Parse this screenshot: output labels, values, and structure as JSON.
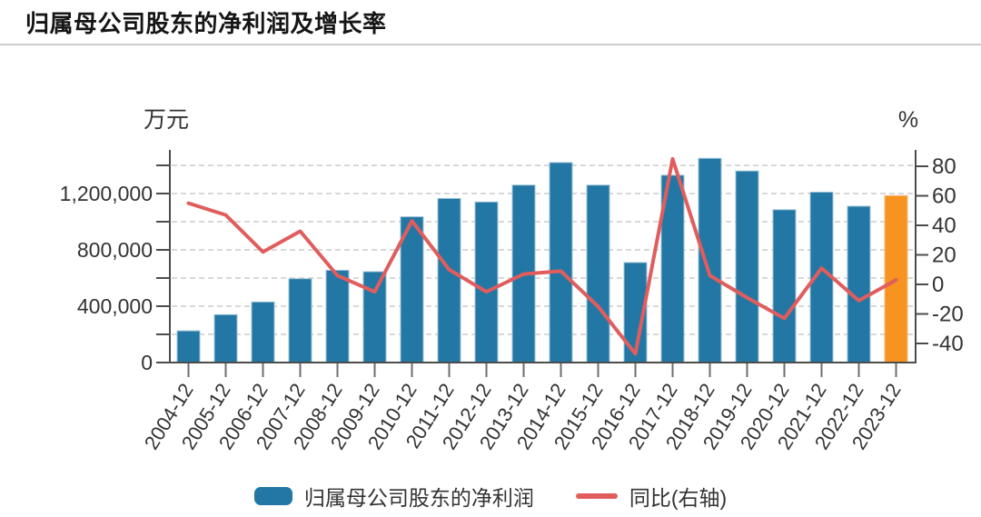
{
  "header": {
    "title": "归属母公司股东的净利润及增长率"
  },
  "chart_data": {
    "type": "combo-bar-line-dual-axis",
    "title": "归属母公司股东的净利润及增长率",
    "grid": "dashed-horizontal",
    "legend_position": "bottom",
    "categories": [
      "2004-12",
      "2005-12",
      "2006-12",
      "2007-12",
      "2008-12",
      "2009-12",
      "2010-12",
      "2011-12",
      "2012-12",
      "2013-12",
      "2014-12",
      "2015-12",
      "2016-12",
      "2017-12",
      "2018-12",
      "2019-12",
      "2020-12",
      "2021-12",
      "2022-12",
      "2023-12"
    ],
    "series": [
      {
        "name": "归属母公司股东的净利润",
        "type": "bar",
        "y_axis": "left",
        "unit": "万元",
        "color": "#2377A4",
        "edge_color": "#9dc3d7",
        "highlight_index": 19,
        "highlight_color": "#F7931E",
        "highlight_edge_color": "#f5bd7d",
        "values": [
          225000,
          340000,
          430000,
          595000,
          655000,
          645000,
          1035000,
          1165000,
          1140000,
          1260000,
          1420000,
          1260000,
          710000,
          1330000,
          1450000,
          1360000,
          1085000,
          1210000,
          1110000,
          1185000
        ]
      },
      {
        "name": "同比(右轴)",
        "type": "line",
        "y_axis": "right",
        "unit": "%",
        "color": "#E15D5D",
        "values": [
          55,
          47,
          22,
          36,
          6,
          -5,
          43,
          10,
          -5,
          7,
          9,
          -15,
          -47,
          85,
          6,
          -9,
          -23,
          11,
          -11,
          3
        ]
      }
    ],
    "left_axis": {
      "unit": "万元",
      "range": [
        0,
        1500000
      ],
      "minor_tick_step": 200000,
      "minor_tick_max": 1400000,
      "major_ticks": [
        {
          "value": 0,
          "label": "0"
        },
        {
          "value": 400000,
          "label": "400,000"
        },
        {
          "value": 800000,
          "label": "800,000"
        },
        {
          "value": 1200000,
          "label": "1,200,000"
        }
      ]
    },
    "right_axis": {
      "unit": "%",
      "range": [
        -52,
        91
      ],
      "ticks": [
        {
          "value": 80,
          "label": "80"
        },
        {
          "value": 60,
          "label": "60"
        },
        {
          "value": 40,
          "label": "40"
        },
        {
          "value": 20,
          "label": "20"
        },
        {
          "value": 0,
          "label": "0"
        },
        {
          "value": -20,
          "label": "-20"
        },
        {
          "value": -40,
          "label": "-40"
        }
      ]
    }
  },
  "legend": {
    "bar_label": "归属母公司股东的净利润",
    "line_label": "同比(右轴)"
  },
  "colors": {
    "bar": "#2377A4",
    "bar_highlight": "#F7931E",
    "line": "#E15D5D",
    "axis": "#4c4c4c",
    "gridline": "#cccccc",
    "divider": "#cccccc",
    "tick_text": "#333333",
    "title_text": "#151515"
  }
}
